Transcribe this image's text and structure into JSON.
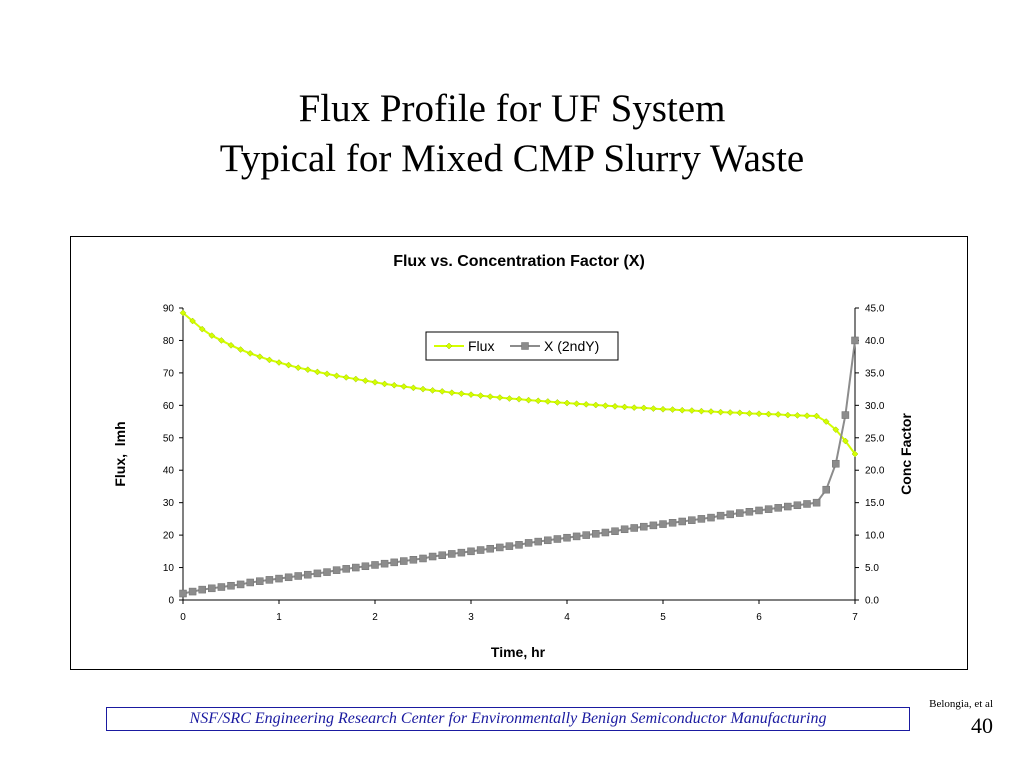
{
  "slide": {
    "title_line1": "Flux Profile for UF System",
    "title_line2": "Typical for Mixed CMP Slurry Waste",
    "footer": "NSF/SRC Engineering Research Center for Environmentally Benign Semiconductor Manufacturing",
    "author": "Belongia, et al",
    "page_number": "40"
  },
  "colors": {
    "flux": "#d4ff00",
    "x2": "#8c8c8c",
    "frame": "#000000",
    "footer": "#1a1aa0"
  },
  "chart_data": {
    "type": "line",
    "title": "Flux vs. Concentration Factor (X)",
    "xlabel": "Time, hr",
    "ylabel": "Flux,  lmh",
    "y2label": "Conc Factor",
    "xlim": [
      0,
      7
    ],
    "ylim": [
      0,
      90
    ],
    "y2lim": [
      0,
      45
    ],
    "x_ticks": [
      "0",
      "1",
      "2",
      "3",
      "4",
      "5",
      "6",
      "7"
    ],
    "y_ticks": [
      "0",
      "10",
      "20",
      "30",
      "40",
      "50",
      "60",
      "70",
      "80",
      "90"
    ],
    "y2_ticks": [
      "0.0",
      "5.0",
      "10.0",
      "15.0",
      "20.0",
      "25.0",
      "30.0",
      "35.0",
      "40.0",
      "45.0"
    ],
    "legend_position": "top-center",
    "grid": false,
    "series": [
      {
        "name": "Flux",
        "axis": "left",
        "x": [
          0,
          0.1,
          0.2,
          0.3,
          0.4,
          0.5,
          0.6,
          0.7,
          0.8,
          0.9,
          1.0,
          1.1,
          1.2,
          1.3,
          1.4,
          1.5,
          1.6,
          1.7,
          1.8,
          1.9,
          2.0,
          2.1,
          2.2,
          2.3,
          2.4,
          2.5,
          2.6,
          2.7,
          2.8,
          2.9,
          3.0,
          3.1,
          3.2,
          3.3,
          3.4,
          3.5,
          3.6,
          3.7,
          3.8,
          3.9,
          4.0,
          4.1,
          4.2,
          4.3,
          4.4,
          4.5,
          4.6,
          4.7,
          4.8,
          4.9,
          5.0,
          5.1,
          5.2,
          5.3,
          5.4,
          5.5,
          5.6,
          5.7,
          5.8,
          5.9,
          6.0,
          6.1,
          6.2,
          6.3,
          6.4,
          6.5,
          6.6,
          6.7,
          6.8,
          6.9,
          7.0
        ],
        "values": [
          88.5,
          86.0,
          83.5,
          81.5,
          80.0,
          78.5,
          77.2,
          76.0,
          75.0,
          74.0,
          73.2,
          72.4,
          71.6,
          71.0,
          70.3,
          69.7,
          69.1,
          68.6,
          68.1,
          67.6,
          67.1,
          66.6,
          66.2,
          65.8,
          65.4,
          65.0,
          64.6,
          64.3,
          63.9,
          63.6,
          63.3,
          63.0,
          62.7,
          62.4,
          62.1,
          61.9,
          61.6,
          61.4,
          61.2,
          60.9,
          60.7,
          60.5,
          60.3,
          60.1,
          59.9,
          59.7,
          59.5,
          59.3,
          59.2,
          59.0,
          58.8,
          58.7,
          58.5,
          58.4,
          58.2,
          58.1,
          57.9,
          57.8,
          57.7,
          57.5,
          57.4,
          57.3,
          57.2,
          57.0,
          56.9,
          56.8,
          56.7,
          55.0,
          52.5,
          49.0,
          45.0
        ]
      },
      {
        "name": "X (2ndY)",
        "axis": "right",
        "x": [
          0,
          0.1,
          0.2,
          0.3,
          0.4,
          0.5,
          0.6,
          0.7,
          0.8,
          0.9,
          1.0,
          1.1,
          1.2,
          1.3,
          1.4,
          1.5,
          1.6,
          1.7,
          1.8,
          1.9,
          2.0,
          2.1,
          2.2,
          2.3,
          2.4,
          2.5,
          2.6,
          2.7,
          2.8,
          2.9,
          3.0,
          3.1,
          3.2,
          3.3,
          3.4,
          3.5,
          3.6,
          3.7,
          3.8,
          3.9,
          4.0,
          4.1,
          4.2,
          4.3,
          4.4,
          4.5,
          4.6,
          4.7,
          4.8,
          4.9,
          5.0,
          5.1,
          5.2,
          5.3,
          5.4,
          5.5,
          5.6,
          5.7,
          5.8,
          5.9,
          6.0,
          6.1,
          6.2,
          6.3,
          6.4,
          6.5,
          6.6,
          6.7,
          6.8,
          6.9,
          7.0
        ],
        "values": [
          1.0,
          1.3,
          1.6,
          1.8,
          2.0,
          2.2,
          2.4,
          2.7,
          2.9,
          3.1,
          3.3,
          3.5,
          3.7,
          3.9,
          4.1,
          4.3,
          4.6,
          4.8,
          5.0,
          5.2,
          5.4,
          5.6,
          5.8,
          6.0,
          6.2,
          6.4,
          6.7,
          6.9,
          7.1,
          7.3,
          7.5,
          7.7,
          7.9,
          8.1,
          8.3,
          8.5,
          8.8,
          9.0,
          9.2,
          9.4,
          9.6,
          9.8,
          10.0,
          10.2,
          10.4,
          10.6,
          10.9,
          11.1,
          11.3,
          11.5,
          11.7,
          11.9,
          12.1,
          12.3,
          12.5,
          12.7,
          13.0,
          13.2,
          13.4,
          13.6,
          13.8,
          14.0,
          14.2,
          14.4,
          14.6,
          14.8,
          15.0,
          17.0,
          21.0,
          28.5,
          40.0
        ]
      }
    ]
  }
}
